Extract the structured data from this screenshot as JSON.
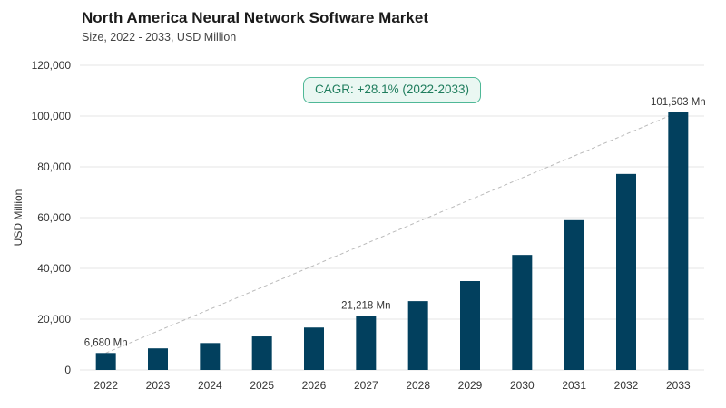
{
  "title": "North America Neural Network Software Market",
  "subtitle": "Size, 2022 - 2033, USD Million",
  "cagr_label": "CAGR: +28.1% (2022-2033)",
  "colors": {
    "bar": "#02405e",
    "grid": "#e6e6e6",
    "trend": "#bbbbbb",
    "accent": "#4fb897"
  },
  "chart_data": {
    "type": "bar",
    "title": "North America Neural Network Software Market",
    "subtitle": "Size, 2022 - 2033, USD Million",
    "xlabel": "",
    "ylabel": "USD Million",
    "categories": [
      "2022",
      "2023",
      "2024",
      "2025",
      "2026",
      "2027",
      "2028",
      "2029",
      "2030",
      "2031",
      "2032",
      "2033"
    ],
    "values": [
      6680,
      8500,
      10600,
      13200,
      16700,
      21218,
      27100,
      35000,
      45300,
      59000,
      77200,
      101503
    ],
    "ylim": [
      0,
      120000
    ],
    "yticks": [
      0,
      20000,
      40000,
      60000,
      80000,
      100000,
      120000
    ],
    "ytick_labels": [
      "0",
      "20,000",
      "40,000",
      "60,000",
      "80,000",
      "100,000",
      "120,000"
    ],
    "grid": true,
    "data_labels": [
      {
        "index": 0,
        "text": "6,680 Mn"
      },
      {
        "index": 5,
        "text": "21,218 Mn"
      },
      {
        "index": 11,
        "text": "101,503 Mn"
      }
    ],
    "annotation": "CAGR: +28.1% (2022-2033)"
  }
}
